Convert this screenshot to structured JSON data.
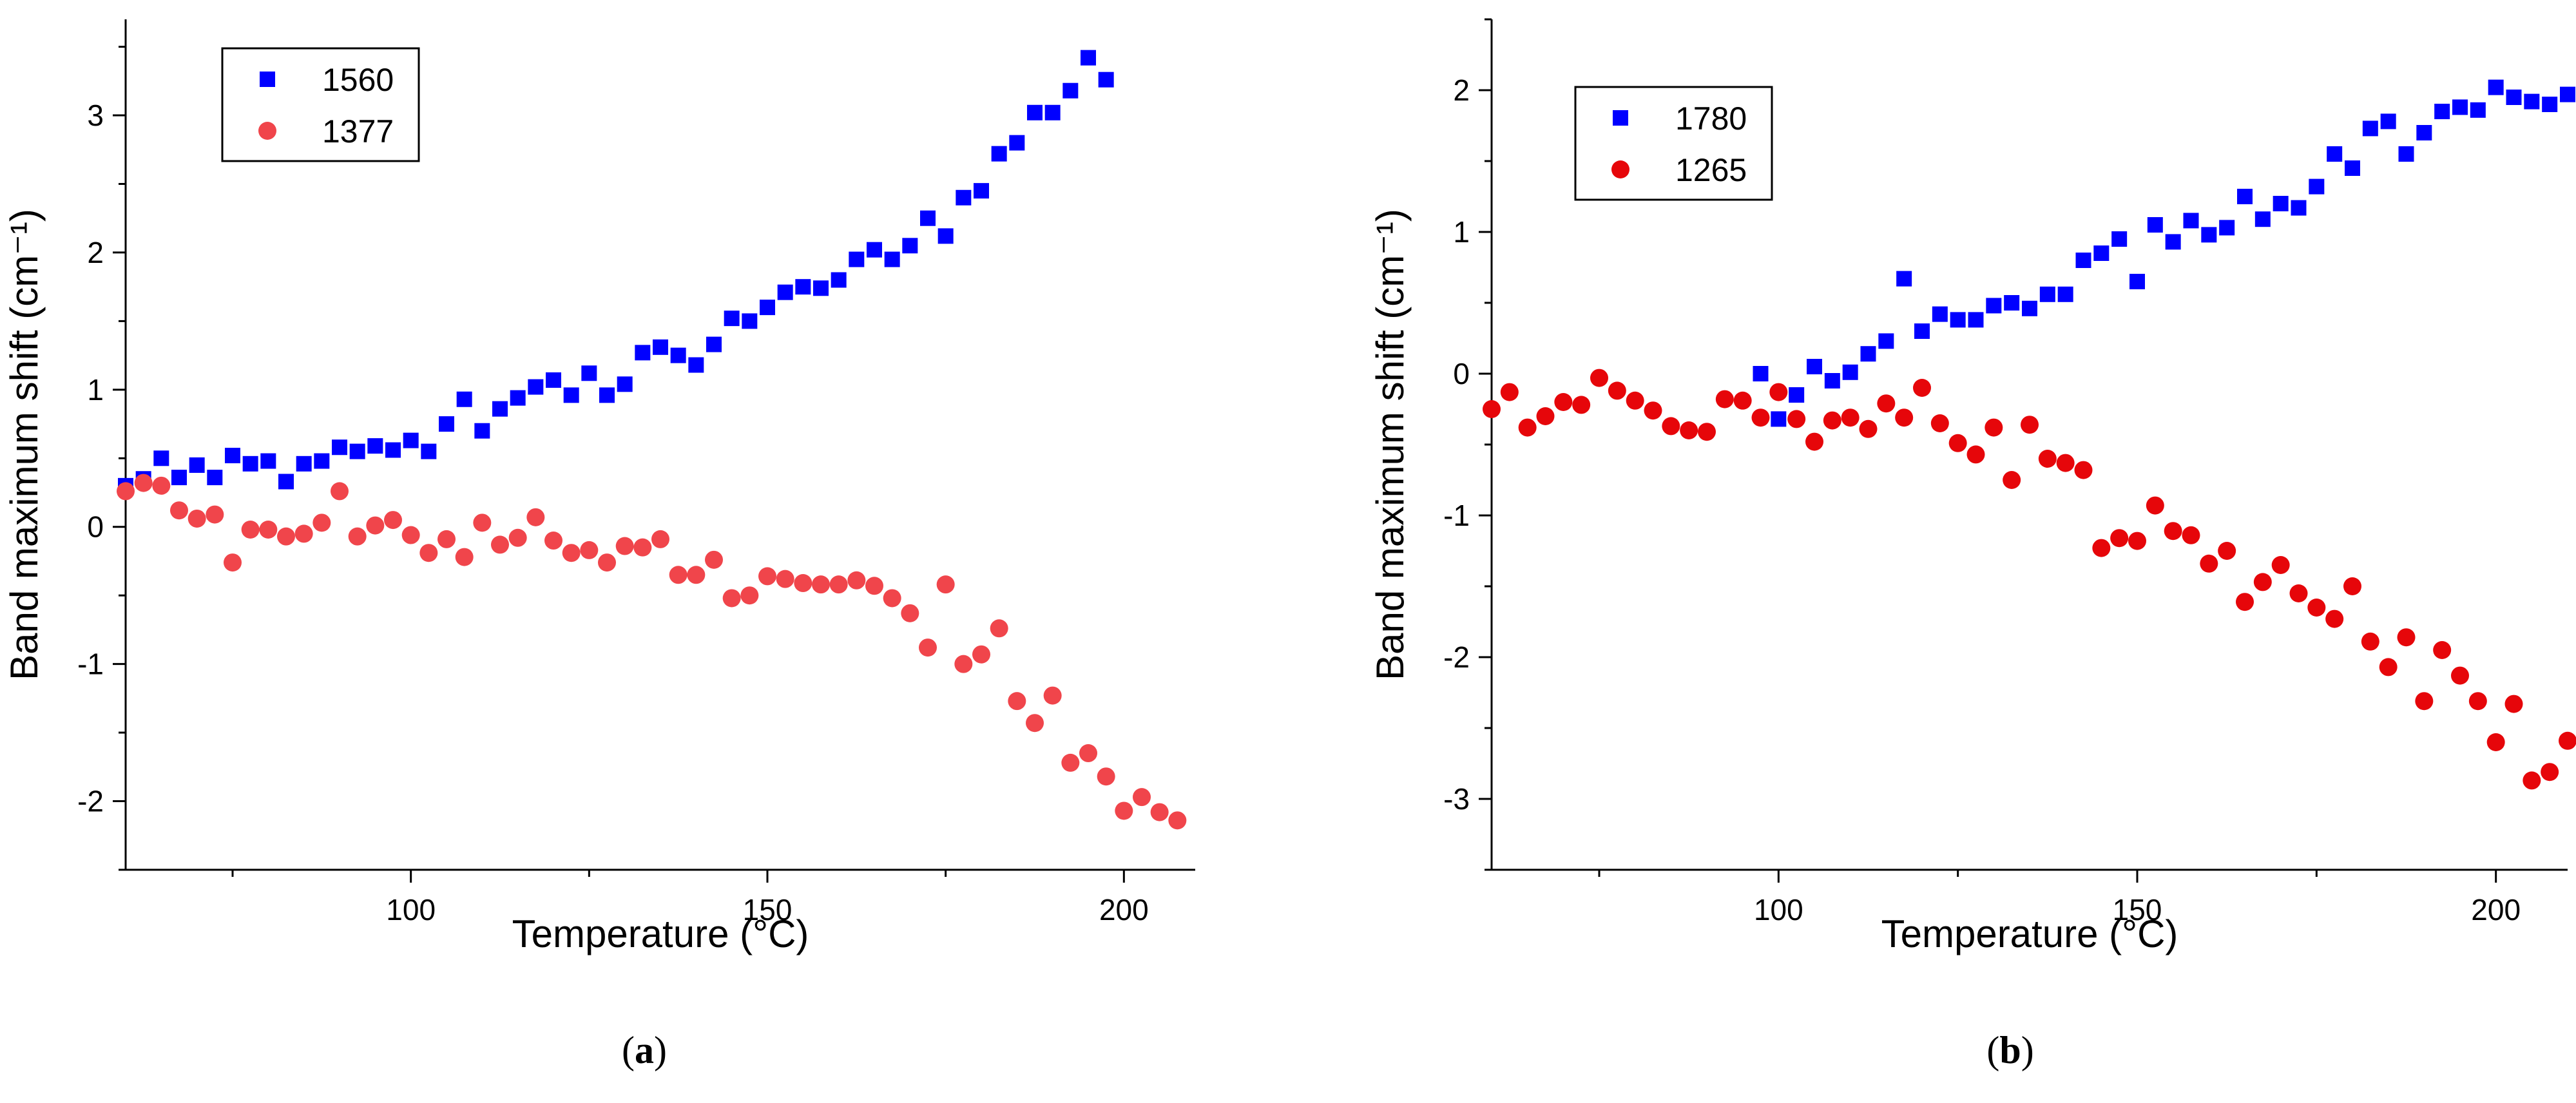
{
  "chart_data": [
    {
      "type": "scatter",
      "panel_label": "a",
      "xlabel": "Temperature (°C)",
      "ylabel": "Band maximum shift (cm⁻¹)",
      "xlim": [
        60,
        210
      ],
      "ylim": [
        -2.5,
        3.7
      ],
      "xticks": [
        100,
        150,
        200
      ],
      "yticks": [
        -2,
        -1,
        0,
        1,
        2,
        3
      ],
      "xtick_labels": [
        "100",
        "150",
        "200"
      ],
      "ytick_labels": [
        "-2",
        "-1",
        "0",
        "1",
        "2",
        "3"
      ],
      "grid": false,
      "legend": "top-left",
      "series": [
        {
          "name": "1560",
          "marker": "square",
          "color": "#0000ff",
          "x": [
            60,
            62.5,
            65,
            67.5,
            70,
            72.5,
            75,
            77.5,
            80,
            82.5,
            85,
            87.5,
            90,
            92.5,
            95,
            97.5,
            100,
            102.5,
            105,
            107.5,
            110,
            112.5,
            115,
            117.5,
            120,
            122.5,
            125,
            127.5,
            130,
            132.5,
            135,
            137.5,
            140,
            142.5,
            145,
            147.5,
            150,
            152.5,
            155,
            157.5,
            160,
            162.5,
            165,
            167.5,
            170,
            172.5,
            175,
            177.5,
            180,
            182.5,
            185,
            187.5,
            190,
            192.5,
            195,
            197.5
          ],
          "y": [
            0.3,
            0.35,
            0.5,
            0.36,
            0.45,
            0.36,
            0.52,
            0.46,
            0.48,
            0.33,
            0.46,
            0.48,
            0.58,
            0.55,
            0.59,
            0.56,
            0.63,
            0.55,
            0.75,
            0.93,
            0.7,
            0.86,
            0.94,
            1.02,
            1.07,
            0.96,
            1.12,
            0.96,
            1.04,
            1.27,
            1.31,
            1.25,
            1.18,
            1.33,
            1.52,
            1.5,
            1.6,
            1.71,
            1.75,
            1.74,
            1.8,
            1.95,
            2.02,
            1.95,
            2.05,
            2.25,
            2.12,
            2.4,
            2.45,
            2.72,
            2.8,
            3.02,
            3.02,
            3.18,
            3.42,
            3.26
          ]
        },
        {
          "name": "1377",
          "marker": "circle",
          "color": "#f0454b",
          "x": [
            60,
            62.5,
            65,
            67.5,
            70,
            72.5,
            75,
            77.5,
            80,
            82.5,
            85,
            87.5,
            90,
            92.5,
            95,
            97.5,
            100,
            102.5,
            105,
            107.5,
            110,
            112.5,
            115,
            117.5,
            120,
            122.5,
            125,
            127.5,
            130,
            132.5,
            135,
            137.5,
            140,
            142.5,
            145,
            147.5,
            150,
            152.5,
            155,
            157.5,
            160,
            162.5,
            165,
            167.5,
            170,
            172.5,
            175,
            177.5,
            180,
            182.5,
            185,
            187.5,
            190,
            192.5,
            195,
            197.5,
            200,
            202.5,
            205,
            207.5
          ],
          "y": [
            0.26,
            0.32,
            0.3,
            0.12,
            0.06,
            0.09,
            -0.26,
            -0.02,
            -0.02,
            -0.07,
            -0.05,
            0.03,
            0.26,
            -0.07,
            0.01,
            0.05,
            -0.06,
            -0.19,
            -0.09,
            -0.22,
            0.03,
            -0.13,
            -0.08,
            0.07,
            -0.1,
            -0.19,
            -0.17,
            -0.26,
            -0.14,
            -0.15,
            -0.09,
            -0.35,
            -0.35,
            -0.24,
            -0.52,
            -0.5,
            -0.36,
            -0.38,
            -0.41,
            -0.42,
            -0.42,
            -0.39,
            -0.43,
            -0.52,
            -0.63,
            -0.88,
            -0.42,
            -1.0,
            -0.93,
            -0.74,
            -1.27,
            -1.43,
            -1.23,
            -1.72,
            -1.65,
            -1.82,
            -2.07,
            -1.97,
            -2.08,
            -2.14
          ]
        }
      ]
    },
    {
      "type": "scatter",
      "panel_label": "b",
      "xlabel": "Temperature (°C)",
      "ylabel": "Band maximum shift (cm⁻¹)",
      "xlim": [
        60,
        210
      ],
      "ylim": [
        -3.5,
        2.5
      ],
      "xticks": [
        100,
        150,
        200
      ],
      "yticks": [
        -3,
        -2,
        -1,
        0,
        1,
        2
      ],
      "xtick_labels": [
        "100",
        "150",
        "200"
      ],
      "ytick_labels": [
        "-3",
        "-2",
        "-1",
        "0",
        "1",
        "2"
      ],
      "grid": false,
      "legend": "top-left",
      "series": [
        {
          "name": "1780",
          "marker": "square",
          "color": "#0000ff",
          "x": [
            97.5,
            100,
            102.5,
            105,
            107.5,
            110,
            112.5,
            115,
            117.5,
            120,
            122.5,
            125,
            127.5,
            130,
            132.5,
            135,
            137.5,
            140,
            142.5,
            145,
            147.5,
            150,
            152.5,
            155,
            157.5,
            160,
            162.5,
            165,
            167.5,
            170,
            172.5,
            175,
            177.5,
            180,
            182.5,
            185,
            187.5,
            190,
            192.5,
            195,
            197.5,
            200,
            202.5,
            205,
            207.5,
            210
          ],
          "y": [
            0.0,
            -0.32,
            -0.15,
            0.05,
            -0.05,
            0.01,
            0.14,
            0.23,
            0.67,
            0.3,
            0.42,
            0.38,
            0.38,
            0.48,
            0.5,
            0.46,
            0.56,
            0.56,
            0.8,
            0.85,
            0.95,
            0.65,
            1.05,
            0.93,
            1.08,
            0.98,
            1.03,
            1.25,
            1.09,
            1.2,
            1.17,
            1.32,
            1.55,
            1.45,
            1.73,
            1.78,
            1.55,
            1.7,
            1.85,
            1.88,
            1.86,
            2.02,
            1.95,
            1.92,
            1.9,
            1.97
          ]
        },
        {
          "name": "1265",
          "marker": "circle",
          "color": "#e6060a",
          "x": [
            60,
            62.5,
            65,
            67.5,
            70,
            72.5,
            75,
            77.5,
            80,
            82.5,
            85,
            87.5,
            90,
            92.5,
            95,
            97.5,
            100,
            102.5,
            105,
            107.5,
            110,
            112.5,
            115,
            117.5,
            120,
            122.5,
            125,
            127.5,
            130,
            132.5,
            135,
            137.5,
            140,
            142.5,
            145,
            147.5,
            150,
            152.5,
            155,
            157.5,
            160,
            162.5,
            165,
            167.5,
            170,
            172.5,
            175,
            177.5,
            180,
            182.5,
            185,
            187.5,
            190,
            192.5,
            195,
            197.5,
            200,
            202.5,
            205,
            207.5,
            210
          ],
          "y": [
            -0.25,
            -0.13,
            -0.38,
            -0.3,
            -0.2,
            -0.22,
            -0.03,
            -0.12,
            -0.19,
            -0.26,
            -0.37,
            -0.4,
            -0.41,
            -0.18,
            -0.19,
            -0.31,
            -0.13,
            -0.32,
            -0.48,
            -0.33,
            -0.31,
            -0.39,
            -0.21,
            -0.31,
            -0.1,
            -0.35,
            -0.49,
            -0.57,
            -0.38,
            -0.75,
            -0.36,
            -0.6,
            -0.63,
            -0.68,
            -1.23,
            -1.16,
            -1.18,
            -0.93,
            -1.11,
            -1.14,
            -1.34,
            -1.25,
            -1.61,
            -1.47,
            -1.35,
            -1.55,
            -1.65,
            -1.73,
            -1.5,
            -1.89,
            -2.07,
            -1.86,
            -2.31,
            -1.95,
            -2.13,
            -2.31,
            -2.6,
            -2.33,
            -2.87,
            -2.81,
            -2.59
          ]
        }
      ]
    }
  ]
}
